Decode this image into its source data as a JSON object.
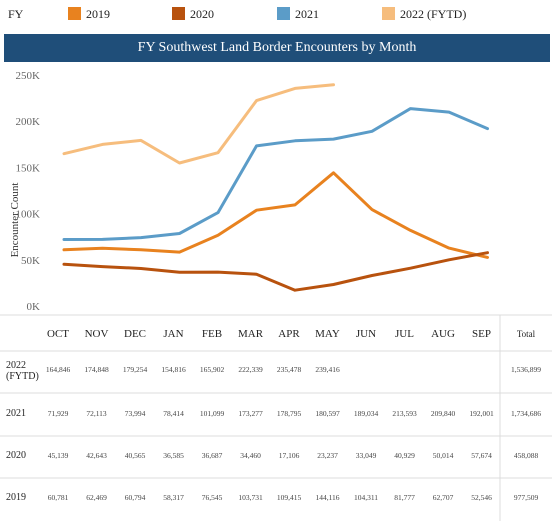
{
  "legend": {
    "label": "FY",
    "items": [
      {
        "name": "2019",
        "color": "#e8821f"
      },
      {
        "name": "2020",
        "color": "#b8520e"
      },
      {
        "name": "2021",
        "color": "#5b9cc8"
      },
      {
        "name": "2022 (FYTD)",
        "color": "#f6bd7d"
      }
    ]
  },
  "chart_data": {
    "type": "line",
    "title": "FY Southwest Land Border Encounters by Month",
    "ylabel": "Encounter Count",
    "xlabel": "",
    "ylim": [
      0,
      250000
    ],
    "yticks": [
      "0K",
      "50K",
      "100K",
      "150K",
      "200K",
      "250K"
    ],
    "categories": [
      "OCT",
      "NOV",
      "DEC",
      "JAN",
      "FEB",
      "MAR",
      "APR",
      "MAY",
      "JUN",
      "JUL",
      "AUG",
      "SEP"
    ],
    "total_label": "Total",
    "grid": false,
    "legend_position": "top",
    "series": [
      {
        "name": "2022 (FYTD)",
        "row_label": [
          "2022",
          "(FYTD)"
        ],
        "color": "#f6bd7d",
        "values": [
          164846,
          174848,
          179254,
          154816,
          165902,
          222339,
          235478,
          239416,
          null,
          null,
          null,
          null
        ],
        "value_labels": [
          "164,846",
          "174,848",
          "179,254",
          "154,816",
          "165,902",
          "222,339",
          "235,478",
          "239,416",
          "",
          "",
          "",
          ""
        ],
        "total": "1,536,899"
      },
      {
        "name": "2021",
        "row_label": [
          "2021"
        ],
        "color": "#5b9cc8",
        "values": [
          71929,
          72113,
          73994,
          78414,
          101099,
          173277,
          178795,
          180597,
          189034,
          213593,
          209840,
          192001
        ],
        "value_labels": [
          "71,929",
          "72,113",
          "73,994",
          "78,414",
          "101,099",
          "173,277",
          "178,795",
          "180,597",
          "189,034",
          "213,593",
          "209,840",
          "192,001"
        ],
        "total": "1,734,686"
      },
      {
        "name": "2020",
        "row_label": [
          "2020"
        ],
        "color": "#b8520e",
        "values": [
          45139,
          42643,
          40565,
          36585,
          36687,
          34460,
          17106,
          23237,
          33049,
          40929,
          50014,
          57674
        ],
        "value_labels": [
          "45,139",
          "42,643",
          "40,565",
          "36,585",
          "36,687",
          "34,460",
          "17,106",
          "23,237",
          "33,049",
          "40,929",
          "50,014",
          "57,674"
        ],
        "total": "458,088"
      },
      {
        "name": "2019",
        "row_label": [
          "2019"
        ],
        "color": "#e8821f",
        "values": [
          60781,
          62469,
          60794,
          58317,
          76545,
          103731,
          109415,
          144116,
          104311,
          81777,
          62707,
          52546
        ],
        "value_labels": [
          "60,781",
          "62,469",
          "60,794",
          "58,317",
          "76,545",
          "103,731",
          "109,415",
          "144,116",
          "104,311",
          "81,777",
          "62,707",
          "52,546"
        ],
        "total": "977,509"
      }
    ]
  }
}
